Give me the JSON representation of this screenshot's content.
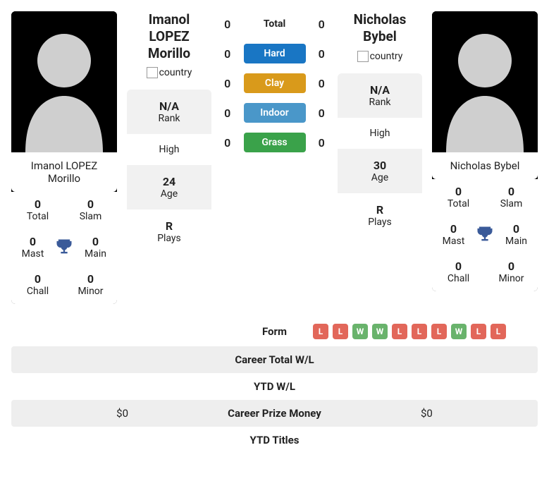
{
  "colors": {
    "hard": "#1976c4",
    "clay": "#d99a1b",
    "indoor": "#4a97c9",
    "grass": "#3aa24a",
    "form_win": "#69b36c",
    "form_loss": "#e2675a",
    "trophy": "#3a5a99",
    "alt_row": "#eeeeee",
    "info_alt": "#f1f1f1",
    "silhouette": "#cfcfcf",
    "text": "#222222",
    "bg": "#ffffff"
  },
  "player1": {
    "display_name": "Imanol LOPEZ Morillo",
    "name_line1": "Imanol LOPEZ",
    "name_line2": "Morillo",
    "flag_alt": "country",
    "rank": "N/A",
    "high": "",
    "age": "24",
    "plays": "R",
    "titles": {
      "total": "0",
      "slam": "0",
      "mast": "0",
      "main": "0",
      "chall": "0",
      "minor": "0"
    },
    "career_prize": "$0"
  },
  "player2": {
    "display_name": "Nicholas Bybel",
    "name_line1": "Nicholas",
    "name_line2": "Bybel",
    "flag_alt": "country",
    "rank": "N/A",
    "high": "",
    "age": "30",
    "plays": "R",
    "titles": {
      "total": "0",
      "slam": "0",
      "mast": "0",
      "main": "0",
      "chall": "0",
      "minor": "0"
    },
    "career_prize": "$0",
    "form": [
      "L",
      "L",
      "W",
      "W",
      "L",
      "L",
      "L",
      "W",
      "L",
      "L"
    ]
  },
  "labels": {
    "rank": "Rank",
    "high": "High",
    "age": "Age",
    "plays": "Plays",
    "title_total": "Total",
    "title_slam": "Slam",
    "title_mast": "Mast",
    "title_main": "Main",
    "title_chall": "Chall",
    "title_minor": "Minor"
  },
  "h2h": {
    "total": {
      "label": "Total",
      "p1": "0",
      "p2": "0"
    },
    "hard": {
      "label": "Hard",
      "p1": "0",
      "p2": "0"
    },
    "clay": {
      "label": "Clay",
      "p1": "0",
      "p2": "0"
    },
    "indoor": {
      "label": "Indoor",
      "p1": "0",
      "p2": "0"
    },
    "grass": {
      "label": "Grass",
      "p1": "0",
      "p2": "0"
    }
  },
  "comparison": [
    {
      "label": "Form"
    },
    {
      "label": "Career Total W/L"
    },
    {
      "label": "YTD W/L"
    },
    {
      "label": "Career Prize Money"
    },
    {
      "label": "YTD Titles"
    }
  ]
}
